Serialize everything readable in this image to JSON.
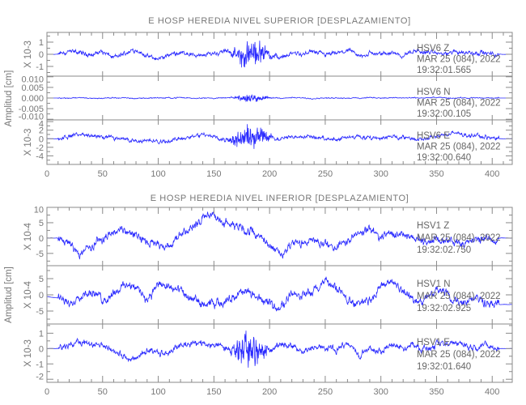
{
  "chart_data": {
    "type": "line",
    "groups": [
      {
        "title": "E HOSP HEREDIA NIVEL SUPERIOR [DESPLAZAMIENTO]",
        "ylabel": "Amplitud [cm]",
        "xlim": [
          0,
          418
        ],
        "xticks": [
          0,
          50,
          100,
          150,
          200,
          250,
          300,
          350,
          400
        ],
        "panels": [
          {
            "scale_label": "X 10-3",
            "ylim": [
              -1.8,
              1.8
            ],
            "yticks": [
              "1",
              "0",
              "-1"
            ],
            "ytick_values": [
              1,
              0,
              -1
            ],
            "station": "HSV6   Z",
            "date": "MAR 25 (084), 2022",
            "time": "19:32:01.565",
            "baseline": [
              0,
              0,
              0.3,
              0.1,
              0,
              0.2,
              -0.3,
              0.1,
              0.4,
              -0.2,
              -0.4,
              -0.1,
              0.2,
              0,
              -0.2,
              0.1,
              0.3,
              0,
              -0.1,
              0.2,
              0,
              -0.3,
              0.1,
              0,
              0.2,
              -0.1,
              0,
              0.3,
              -0.2,
              0.1,
              0,
              0.2,
              -0.1,
              0.3,
              0.2,
              0.1,
              0,
              0.3,
              0.1,
              0.2,
              0,
              0,
              0
            ],
            "noise": 0.18,
            "burst": {
              "center": 183,
              "halfwidth": 14,
              "amp": 1.4
            }
          },
          {
            "scale_label": "",
            "ylim": [
              -0.0103,
              0.0103
            ],
            "yticks": [
              "0.010",
              "0.005",
              "0.000",
              "-0.005",
              "-0.010"
            ],
            "ytick_values": [
              0.01,
              0.005,
              0,
              -0.005,
              -0.01
            ],
            "station": "HSV6   N",
            "date": "MAR 25 (084), 2022",
            "time": "19:32:00.105",
            "baseline": [
              0,
              0,
              0,
              0.0002,
              -0.0002,
              0,
              0.0001,
              0,
              -0.0001,
              0,
              0.0001,
              0,
              0.0002,
              0,
              -0.0001,
              0,
              0,
              0.0001,
              0,
              0,
              0,
              0,
              0.0001,
              0,
              -0.0001,
              0,
              0.0001,
              0,
              0,
              0.0002,
              0,
              0.0001,
              0,
              0,
              0.0001,
              0.0002,
              0,
              0.0001,
              0,
              0,
              0,
              0,
              0
            ],
            "noise": 0.00025,
            "burst": {
              "center": 183,
              "halfwidth": 13,
              "amp": 0.0022
            }
          },
          {
            "scale_label": "X 10-3",
            "ylim": [
              -6,
              4.4
            ],
            "yticks": [
              "4",
              "2",
              "0",
              "-2",
              "-4"
            ],
            "ytick_values": [
              4,
              2,
              0,
              -2,
              -4
            ],
            "station": "HSV6   E",
            "date": "MAR 25 (084), 2022",
            "time": "19:32:00.640",
            "baseline": [
              0,
              0,
              0.6,
              1,
              0.8,
              0.5,
              0.2,
              0,
              -0.5,
              -0.3,
              -0.8,
              -0.5,
              0,
              0.5,
              1,
              0.3,
              -0.3,
              0,
              0.2,
              0.5,
              0.3,
              0,
              0.3,
              0.6,
              0.4,
              0,
              -0.2,
              0.3,
              0.5,
              0,
              0.3,
              0.6,
              0.2,
              0,
              -0.3,
              0.5,
              1,
              1.2,
              0.8,
              0.5,
              0,
              0,
              0
            ],
            "noise": 0.45,
            "burst": {
              "center": 182,
              "halfwidth": 15,
              "amp": 3.5
            }
          }
        ]
      },
      {
        "title": "E HOSP HEREDIA NIVEL INFERIOR [DESPLAZAMIENTO]",
        "ylabel": "Amplitud [cm]",
        "xlim": [
          0,
          418
        ],
        "xticks": [
          0,
          50,
          100,
          150,
          200,
          250,
          300,
          350,
          400
        ],
        "panels": [
          {
            "scale_label": "X 10-4",
            "ylim": [
              -9,
              10
            ],
            "yticks": [
              "10",
              "5",
              "0",
              "-5"
            ],
            "ytick_values": [
              10,
              5,
              0,
              -5
            ],
            "station": "HSV1   Z",
            "date": "MAR 25 (084), 2022",
            "time": "19:32:02.750",
            "baseline": [
              0,
              0,
              -2,
              -5,
              -3,
              0,
              2,
              3,
              1,
              -1,
              -2,
              -3,
              2,
              3,
              6,
              7,
              5,
              4,
              3,
              1,
              -2,
              -5,
              -2,
              -2,
              -1,
              -2,
              -3,
              -1,
              2,
              3,
              0,
              2,
              1,
              0,
              -1,
              0,
              0,
              -2,
              -1,
              0,
              0,
              0,
              0
            ],
            "noise": 1.3,
            "burst": {
              "center": 183,
              "halfwidth": 10,
              "amp": 0.5
            }
          },
          {
            "scale_label": "X 10-4",
            "ylim": [
              -9,
              9
            ],
            "yticks": [
              "5",
              "0",
              "-5"
            ],
            "ytick_values": [
              5,
              0,
              -5
            ],
            "station": "HSV1   N",
            "date": "MAR 25 (084), 2022",
            "time": "19:32:02.925",
            "baseline": [
              -0.5,
              -1,
              -3,
              0,
              1,
              -2,
              1,
              3,
              2,
              -1,
              3,
              2,
              1,
              -2,
              -3,
              -3,
              -2,
              0,
              1,
              -1,
              -3,
              -4,
              1,
              0,
              1,
              4,
              2,
              -2,
              -3,
              -1,
              2,
              4,
              1,
              -2,
              -1,
              1,
              0,
              -2,
              -1,
              -2,
              -3,
              -3,
              -3
            ],
            "noise": 1.3,
            "burst": {
              "center": 183,
              "halfwidth": 10,
              "amp": 0.5
            }
          },
          {
            "scale_label": "X 10-3",
            "ylim": [
              -2.2,
              1.6
            ],
            "yticks": [
              "1",
              "0",
              "-1",
              "-2"
            ],
            "ytick_values": [
              1,
              0,
              -1,
              -2
            ],
            "station": "HSV1   E",
            "date": "MAR 25 (084), 2022",
            "time": "19:32:01.640",
            "baseline": [
              0,
              0,
              0.3,
              0.4,
              0.3,
              0.1,
              -0.1,
              -0.5,
              -0.6,
              0,
              -0.3,
              -0.2,
              0.2,
              0.3,
              0.4,
              0.3,
              0,
              0,
              0,
              -0.2,
              0,
              0.2,
              0.2,
              -0.3,
              0.1,
              0,
              -0.1,
              0.3,
              -0.4,
              0,
              -0.2,
              0.2,
              0.1,
              0.3,
              0,
              0.2,
              0.3,
              0.4,
              0.1,
              0.2,
              0,
              0,
              0
            ],
            "noise": 0.2,
            "burst": {
              "center": 182,
              "halfwidth": 14,
              "amp": 1.4
            }
          }
        ]
      }
    ],
    "baseline_sample_interval": 10,
    "line_color": "#2a2aff",
    "axis_color": "#8a8a8a"
  }
}
